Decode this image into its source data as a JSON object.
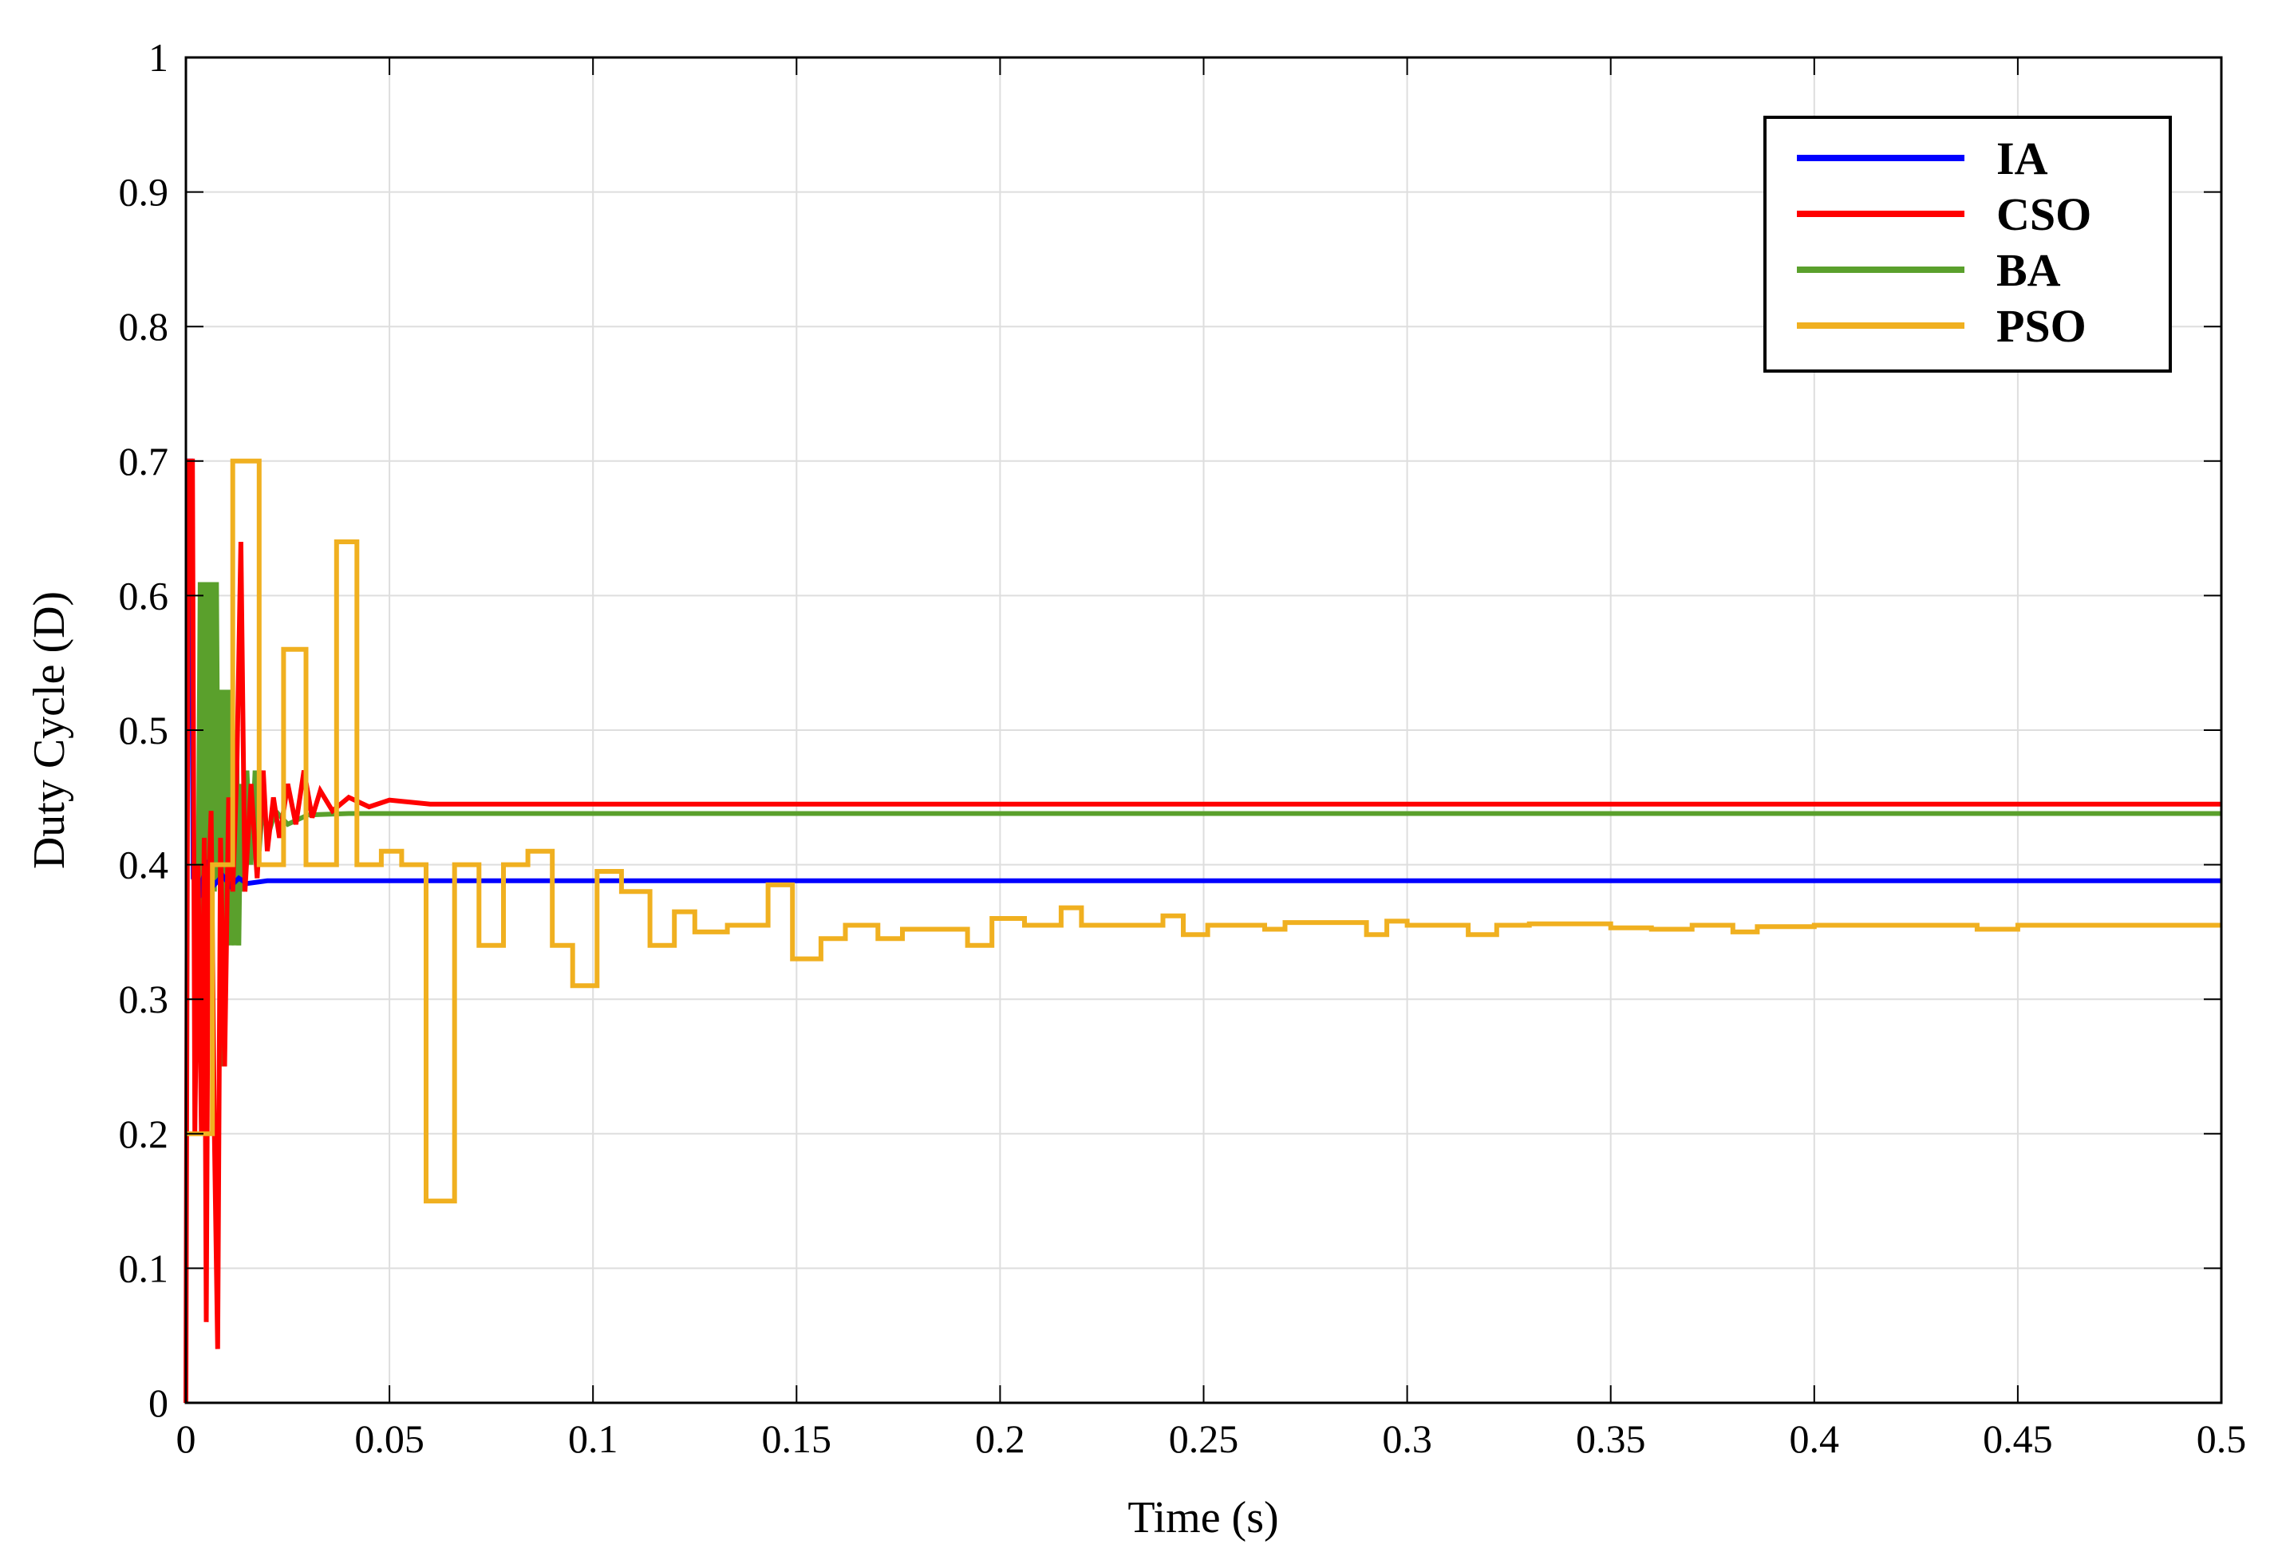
{
  "chart_data": {
    "type": "line",
    "title": "",
    "xlabel": "Time (s)",
    "ylabel": "Duty Cycle (D)",
    "xlim": [
      0,
      0.5
    ],
    "ylim": [
      0,
      1
    ],
    "xticks": [
      "0",
      "0.05",
      "0.1",
      "0.15",
      "0.2",
      "0.25",
      "0.3",
      "0.35",
      "0.4",
      "0.45",
      "0.5"
    ],
    "yticks": [
      "0",
      "0.1",
      "0.2",
      "0.3",
      "0.4",
      "0.5",
      "0.6",
      "0.7",
      "0.8",
      "0.9",
      "1"
    ],
    "grid": true,
    "legend_position": "top-right",
    "series": [
      {
        "name": "IA",
        "color": "#0000ff",
        "points": [
          [
            0,
            0.7
          ],
          [
            0.0012,
            0.7
          ],
          [
            0.0018,
            0.39
          ],
          [
            0.0035,
            0.38
          ],
          [
            0.005,
            0.4
          ],
          [
            0.007,
            0.385
          ],
          [
            0.009,
            0.392
          ],
          [
            0.011,
            0.384
          ],
          [
            0.013,
            0.39
          ],
          [
            0.015,
            0.386
          ],
          [
            0.02,
            0.388
          ],
          [
            0.5,
            0.388
          ]
        ]
      },
      {
        "name": "CSO",
        "color": "#ff0000",
        "points": [
          [
            0,
            0
          ],
          [
            0.0006,
            0.7
          ],
          [
            0.0016,
            0.7
          ],
          [
            0.0022,
            0.2
          ],
          [
            0.003,
            0.4
          ],
          [
            0.0038,
            0.2
          ],
          [
            0.0045,
            0.42
          ],
          [
            0.005,
            0.06
          ],
          [
            0.0055,
            0.38
          ],
          [
            0.0062,
            0.44
          ],
          [
            0.007,
            0.2
          ],
          [
            0.0078,
            0.04
          ],
          [
            0.0085,
            0.42
          ],
          [
            0.0095,
            0.25
          ],
          [
            0.0105,
            0.45
          ],
          [
            0.0115,
            0.38
          ],
          [
            0.0125,
            0.47
          ],
          [
            0.0135,
            0.64
          ],
          [
            0.0145,
            0.38
          ],
          [
            0.016,
            0.46
          ],
          [
            0.0175,
            0.39
          ],
          [
            0.019,
            0.47
          ],
          [
            0.02,
            0.41
          ],
          [
            0.0215,
            0.45
          ],
          [
            0.023,
            0.42
          ],
          [
            0.025,
            0.46
          ],
          [
            0.027,
            0.43
          ],
          [
            0.029,
            0.47
          ],
          [
            0.031,
            0.435
          ],
          [
            0.033,
            0.455
          ],
          [
            0.036,
            0.44
          ],
          [
            0.04,
            0.45
          ],
          [
            0.045,
            0.443
          ],
          [
            0.05,
            0.448
          ],
          [
            0.06,
            0.445
          ],
          [
            0.5,
            0.445
          ]
        ]
      },
      {
        "name": "BA",
        "color": "#5aa02c",
        "points": [
          [
            0.003,
            0.37
          ],
          [
            0.0035,
            0.61
          ],
          [
            0.004,
            0.36
          ],
          [
            0.0045,
            0.61
          ],
          [
            0.005,
            0.37
          ],
          [
            0.0055,
            0.61
          ],
          [
            0.006,
            0.38
          ],
          [
            0.0065,
            0.61
          ],
          [
            0.007,
            0.38
          ],
          [
            0.0075,
            0.61
          ],
          [
            0.008,
            0.39
          ],
          [
            0.0085,
            0.53
          ],
          [
            0.009,
            0.25
          ],
          [
            0.0095,
            0.53
          ],
          [
            0.01,
            0.35
          ],
          [
            0.0105,
            0.53
          ],
          [
            0.011,
            0.34
          ],
          [
            0.0115,
            0.5
          ],
          [
            0.012,
            0.34
          ],
          [
            0.0125,
            0.48
          ],
          [
            0.013,
            0.34
          ],
          [
            0.0135,
            0.46
          ],
          [
            0.014,
            0.38
          ],
          [
            0.015,
            0.47
          ],
          [
            0.016,
            0.4
          ],
          [
            0.017,
            0.47
          ],
          [
            0.018,
            0.41
          ],
          [
            0.019,
            0.45
          ],
          [
            0.02,
            0.42
          ],
          [
            0.022,
            0.44
          ],
          [
            0.025,
            0.43
          ],
          [
            0.03,
            0.437
          ],
          [
            0.04,
            0.438
          ],
          [
            0.5,
            0.438
          ]
        ]
      },
      {
        "name": "PSO",
        "color": "#f0b020",
        "points": [
          [
            0,
            0.2
          ],
          [
            0.0065,
            0.2
          ],
          [
            0.0065,
            0.4
          ],
          [
            0.0115,
            0.4
          ],
          [
            0.0115,
            0.7
          ],
          [
            0.018,
            0.7
          ],
          [
            0.018,
            0.4
          ],
          [
            0.024,
            0.4
          ],
          [
            0.024,
            0.56
          ],
          [
            0.0295,
            0.56
          ],
          [
            0.0295,
            0.4
          ],
          [
            0.037,
            0.4
          ],
          [
            0.037,
            0.64
          ],
          [
            0.042,
            0.64
          ],
          [
            0.042,
            0.4
          ],
          [
            0.048,
            0.4
          ],
          [
            0.048,
            0.41
          ],
          [
            0.053,
            0.41
          ],
          [
            0.053,
            0.4
          ],
          [
            0.059,
            0.4
          ],
          [
            0.059,
            0.15
          ],
          [
            0.066,
            0.15
          ],
          [
            0.066,
            0.4
          ],
          [
            0.072,
            0.4
          ],
          [
            0.072,
            0.34
          ],
          [
            0.078,
            0.34
          ],
          [
            0.078,
            0.4
          ],
          [
            0.084,
            0.4
          ],
          [
            0.084,
            0.41
          ],
          [
            0.09,
            0.41
          ],
          [
            0.09,
            0.34
          ],
          [
            0.095,
            0.34
          ],
          [
            0.095,
            0.31
          ],
          [
            0.101,
            0.31
          ],
          [
            0.101,
            0.395
          ],
          [
            0.107,
            0.395
          ],
          [
            0.107,
            0.38
          ],
          [
            0.114,
            0.38
          ],
          [
            0.114,
            0.34
          ],
          [
            0.12,
            0.34
          ],
          [
            0.12,
            0.365
          ],
          [
            0.125,
            0.365
          ],
          [
            0.125,
            0.35
          ],
          [
            0.133,
            0.35
          ],
          [
            0.133,
            0.355
          ],
          [
            0.143,
            0.355
          ],
          [
            0.143,
            0.385
          ],
          [
            0.149,
            0.385
          ],
          [
            0.149,
            0.33
          ],
          [
            0.156,
            0.33
          ],
          [
            0.156,
            0.345
          ],
          [
            0.162,
            0.345
          ],
          [
            0.162,
            0.355
          ],
          [
            0.17,
            0.355
          ],
          [
            0.17,
            0.345
          ],
          [
            0.176,
            0.345
          ],
          [
            0.176,
            0.352
          ],
          [
            0.192,
            0.352
          ],
          [
            0.192,
            0.34
          ],
          [
            0.198,
            0.34
          ],
          [
            0.198,
            0.36
          ],
          [
            0.206,
            0.36
          ],
          [
            0.206,
            0.355
          ],
          [
            0.215,
            0.355
          ],
          [
            0.215,
            0.368
          ],
          [
            0.22,
            0.368
          ],
          [
            0.22,
            0.355
          ],
          [
            0.24,
            0.355
          ],
          [
            0.24,
            0.362
          ],
          [
            0.245,
            0.362
          ],
          [
            0.245,
            0.348
          ],
          [
            0.251,
            0.348
          ],
          [
            0.251,
            0.355
          ],
          [
            0.265,
            0.355
          ],
          [
            0.265,
            0.352
          ],
          [
            0.27,
            0.352
          ],
          [
            0.27,
            0.357
          ],
          [
            0.29,
            0.357
          ],
          [
            0.29,
            0.348
          ],
          [
            0.295,
            0.348
          ],
          [
            0.295,
            0.358
          ],
          [
            0.3,
            0.358
          ],
          [
            0.3,
            0.355
          ],
          [
            0.315,
            0.355
          ],
          [
            0.315,
            0.348
          ],
          [
            0.322,
            0.348
          ],
          [
            0.322,
            0.355
          ],
          [
            0.33,
            0.355
          ],
          [
            0.33,
            0.356
          ],
          [
            0.35,
            0.356
          ],
          [
            0.35,
            0.353
          ],
          [
            0.36,
            0.353
          ],
          [
            0.36,
            0.352
          ],
          [
            0.37,
            0.352
          ],
          [
            0.37,
            0.355
          ],
          [
            0.38,
            0.355
          ],
          [
            0.38,
            0.35
          ],
          [
            0.386,
            0.35
          ],
          [
            0.386,
            0.354
          ],
          [
            0.4,
            0.354
          ],
          [
            0.4,
            0.355
          ],
          [
            0.44,
            0.355
          ],
          [
            0.44,
            0.352
          ],
          [
            0.45,
            0.352
          ],
          [
            0.45,
            0.355
          ],
          [
            0.5,
            0.355
          ]
        ]
      }
    ]
  }
}
